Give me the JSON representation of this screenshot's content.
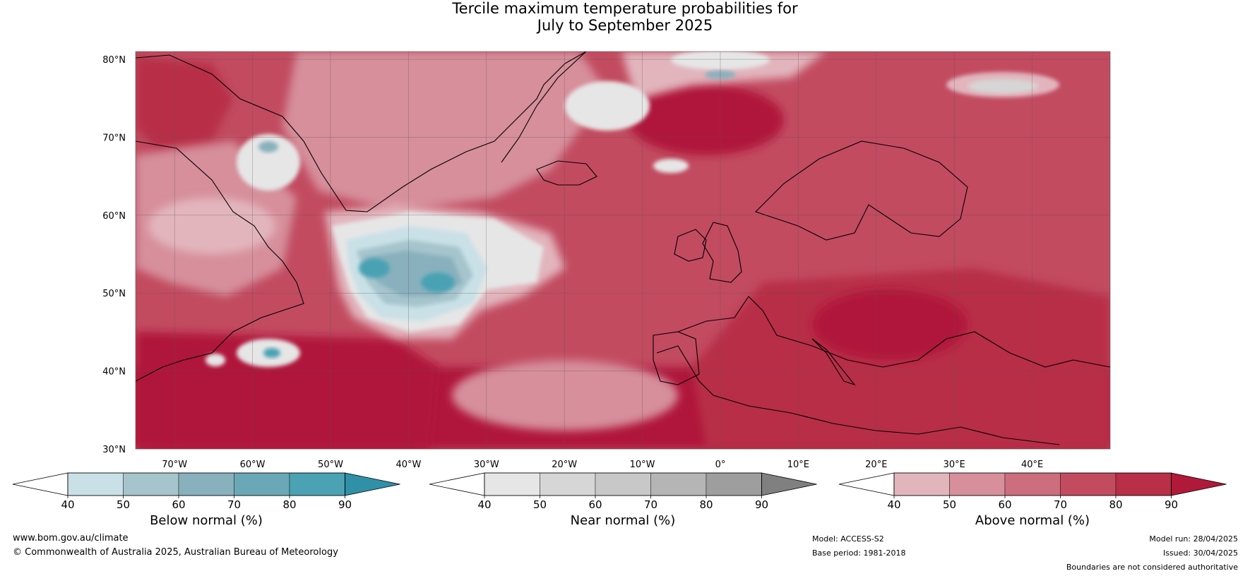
{
  "title": {
    "line1": "Tercile maximum temperature probabilities for",
    "line2": "July to September 2025"
  },
  "map": {
    "latitude_labels": [
      "80°N",
      "70°N",
      "60°N",
      "50°N",
      "40°N",
      "30°N"
    ],
    "longitude_labels": [
      "70°W",
      "60°W",
      "50°W",
      "40°W",
      "30°W",
      "20°W",
      "10°W",
      "0°",
      "10°E",
      "20°E",
      "30°E",
      "40°E"
    ],
    "extent": {
      "lon": [
        -75,
        50
      ],
      "lat": [
        30,
        81
      ]
    },
    "gridlines": true
  },
  "colorbars": [
    {
      "id": "below",
      "label": "Below normal (%)",
      "ticks": [
        "40",
        "50",
        "60",
        "70",
        "80",
        "90"
      ],
      "colors": [
        "#ffffff",
        "#c9e0e7",
        "#a6c4cc",
        "#88b1bd",
        "#6aa8b8",
        "#4aa2b3",
        "#2f90a7"
      ]
    },
    {
      "id": "near",
      "label": "Near normal (%)",
      "ticks": [
        "40",
        "50",
        "60",
        "70",
        "80",
        "90"
      ],
      "colors": [
        "#ffffff",
        "#e6e6e6",
        "#d6d6d6",
        "#c8c8c8",
        "#b5b5b5",
        "#9e9e9e",
        "#808080"
      ]
    },
    {
      "id": "above",
      "label": "Above normal (%)",
      "ticks": [
        "40",
        "50",
        "60",
        "70",
        "80",
        "90"
      ],
      "colors": [
        "#ffffff",
        "#e2b5bd",
        "#d68f9b",
        "#cc6e7d",
        "#c24b60",
        "#b82f47",
        "#b0193a"
      ]
    }
  ],
  "footer": {
    "website": "www.bom.gov.au/climate",
    "copyright": "© Commonwealth of Australia 2025, Australian Bureau of Meteorology",
    "model": "Model: ACCESS-S2",
    "base_period": "Base period: 1981-2018",
    "model_run": "Model run: 28/04/2025",
    "issued": "Issued: 30/04/2025",
    "disclaimer": "Boundaries are not considered authoritative"
  }
}
